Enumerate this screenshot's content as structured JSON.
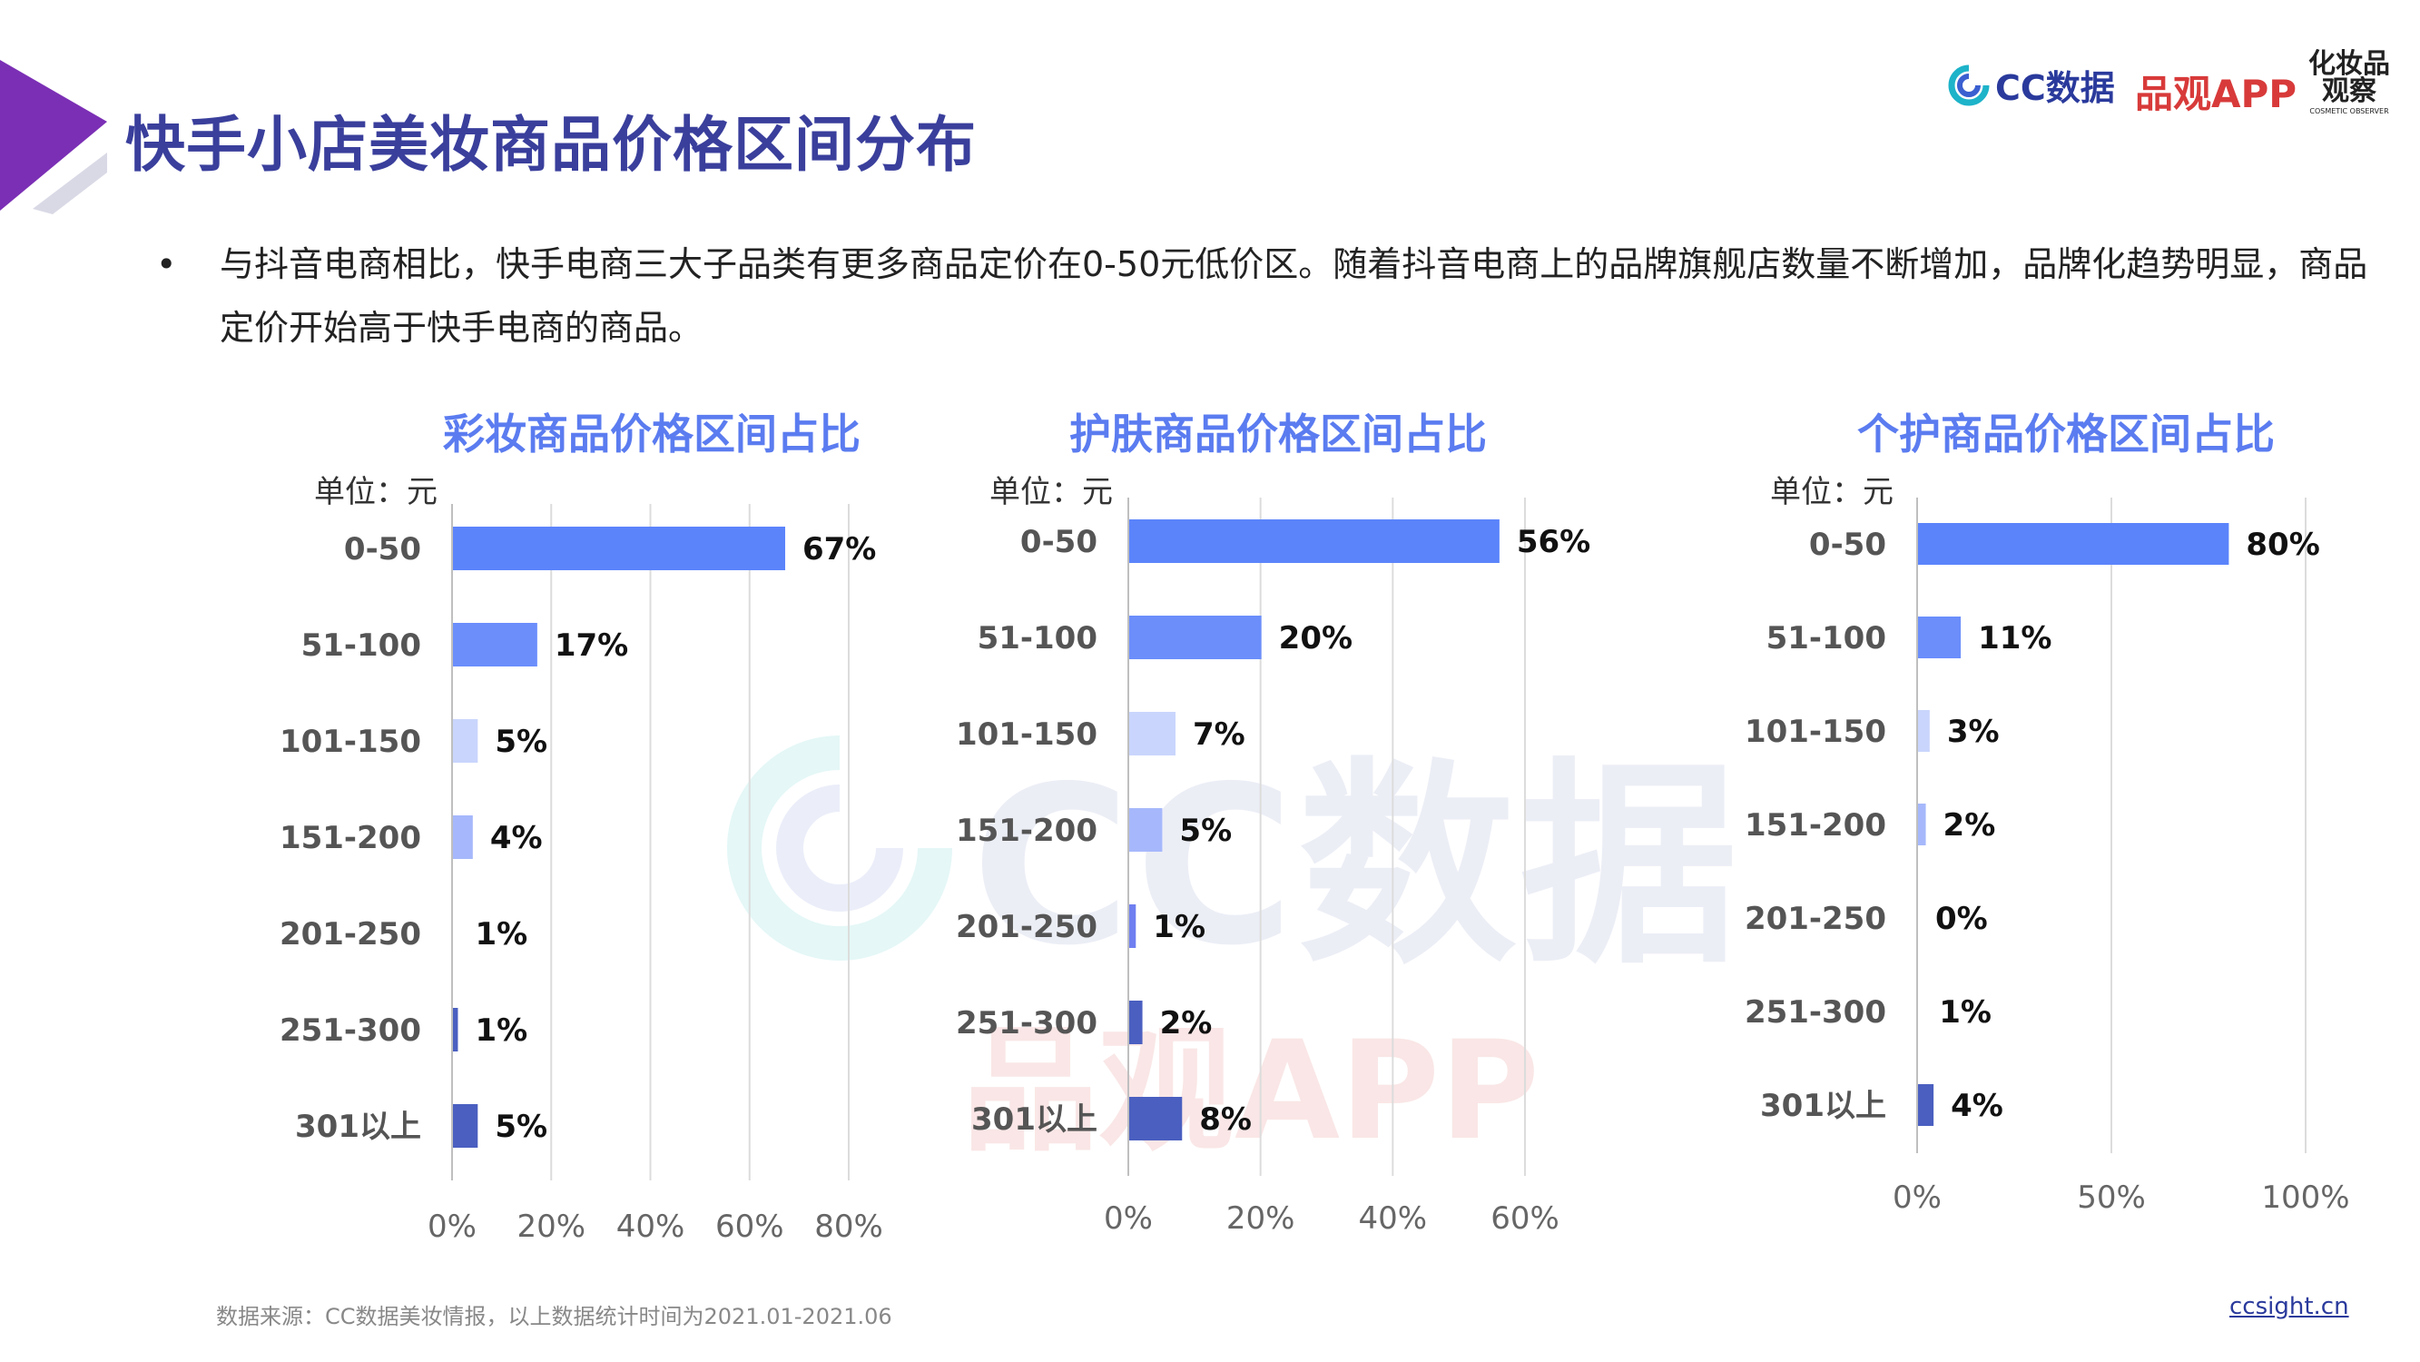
{
  "header": {
    "title": "快手小店美妆商品价格区间分布",
    "accent_color": "#7b2fb5"
  },
  "brands": {
    "cc": "CC数据",
    "pinguan": "品观APP",
    "hz_line1": "化妆品",
    "hz_line2": "观察",
    "hz_line3": "COSMETIC OBSERVER"
  },
  "bullet": {
    "text": "与抖音电商相比，快手电商三大子品类有更多商品定价在0-50元低价区。随着抖音电商上的品牌旗舰店数量不断增加，品牌化趋势明显，商品定价开始高于快手电商的商品。"
  },
  "watermarks": {
    "cc": "CC数据",
    "pinguan": "品观APP"
  },
  "footer": {
    "source": "数据来源：CC数据美妆情报，以上数据统计时间为2021.01-2021.06",
    "site": "ccsight.cn"
  },
  "chart_data": [
    {
      "type": "bar",
      "orientation": "horizontal",
      "title": "彩妆商品价格区间占比",
      "unit_label": "单位：元",
      "categories": [
        "0-50",
        "51-100",
        "101-150",
        "151-200",
        "201-250",
        "251-300",
        "301以上"
      ],
      "values": [
        67,
        17,
        5,
        4,
        1,
        1,
        5
      ],
      "value_labels": [
        "67%",
        "17%",
        "5%",
        "4%",
        "1%",
        "1%",
        "5%"
      ],
      "colors": [
        "#5b84fb",
        "#6b8efb",
        "#c9d5fc",
        "#a6b8fb",
        "#ffffff",
        "#4a5fc0",
        "#4a5fc0"
      ],
      "xlim": [
        0,
        80
      ],
      "xticks": [
        "0%",
        "20%",
        "40%",
        "60%",
        "80%"
      ],
      "grid": true
    },
    {
      "type": "bar",
      "orientation": "horizontal",
      "title": "护肤商品价格区间占比",
      "unit_label": "单位：元",
      "categories": [
        "0-50",
        "51-100",
        "101-150",
        "151-200",
        "201-250",
        "251-300",
        "301以上"
      ],
      "values": [
        56,
        20,
        7,
        5,
        1,
        2,
        8
      ],
      "value_labels": [
        "56%",
        "20%",
        "7%",
        "5%",
        "1%",
        "2%",
        "8%"
      ],
      "colors": [
        "#5b84fb",
        "#6b8efb",
        "#c9d5fc",
        "#a6b8fb",
        "#6f7ff0",
        "#4a5fc0",
        "#4a5fc0"
      ],
      "xlim": [
        0,
        60
      ],
      "xticks": [
        "0%",
        "20%",
        "40%",
        "60%"
      ],
      "grid": true
    },
    {
      "type": "bar",
      "orientation": "horizontal",
      "title": "个护商品价格区间占比",
      "unit_label": "单位：元",
      "categories": [
        "0-50",
        "51-100",
        "101-150",
        "151-200",
        "201-250",
        "251-300",
        "301以上"
      ],
      "values": [
        80,
        11,
        3,
        2,
        0,
        1,
        4
      ],
      "value_labels": [
        "80%",
        "11%",
        "3%",
        "2%",
        "0%",
        "1%",
        "4%"
      ],
      "colors": [
        "#5b84fb",
        "#6b8efb",
        "#c9d5fc",
        "#a6b8fb",
        "#ffffff",
        "#ffffff",
        "#4a5fc0"
      ],
      "xlim": [
        0,
        100
      ],
      "xticks": [
        "0%",
        "50%",
        "100%"
      ],
      "grid": true
    }
  ]
}
